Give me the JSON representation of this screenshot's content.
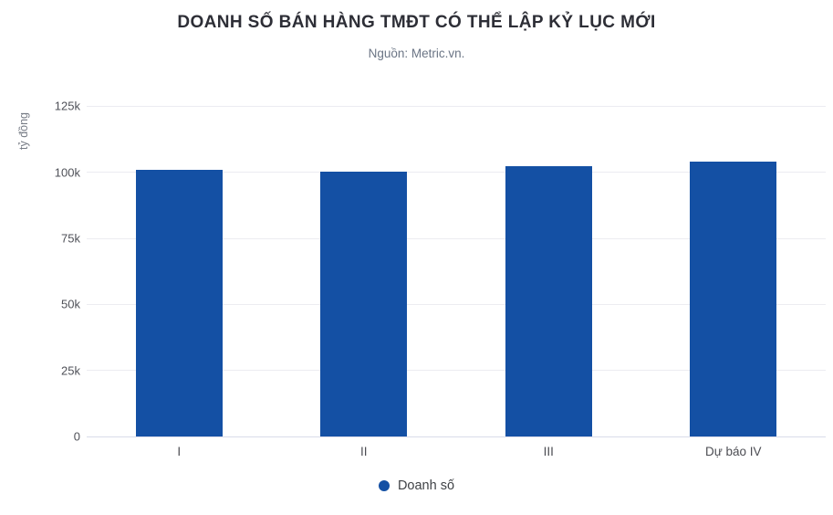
{
  "header": {
    "title": "DOANH SỐ BÁN HÀNG TMĐT CÓ THỂ LẬP KỶ LỤC MỚI",
    "subtitle": "Nguồn: Metric.vn."
  },
  "chart_data": {
    "type": "bar",
    "title": "DOANH SỐ BÁN HÀNG TMĐT CÓ THỂ LẬP KỶ LỤC MỚI",
    "subtitle": "Nguồn: Metric.vn.",
    "categories": [
      "I",
      "II",
      "III",
      "Dự báo IV"
    ],
    "series": [
      {
        "name": "Doanh số",
        "color": "#1450a4",
        "values": [
          101000,
          100400,
          102500,
          104200
        ]
      }
    ],
    "unit": "tỷ đồng",
    "xlabel": "",
    "ylabel": "tỷ đồng",
    "ylim": [
      0,
      130000
    ],
    "yticks": [
      {
        "value": 0,
        "label": "0"
      },
      {
        "value": 25000,
        "label": "25k"
      },
      {
        "value": 50000,
        "label": "50k"
      },
      {
        "value": 75000,
        "label": "75k"
      },
      {
        "value": 100000,
        "label": "100k"
      },
      {
        "value": 125000,
        "label": "125k"
      }
    ],
    "grid": true,
    "legend_position": "bottom"
  },
  "legend": {
    "label": "Doanh số"
  },
  "colors": {
    "bar": "#1450a4",
    "gridline": "#ececf1",
    "axis_line": "#d9dcea",
    "title_text": "#2d2e36",
    "subtitle_text": "#6b7585",
    "tick_text": "#4f5158",
    "background": "#ffffff"
  }
}
